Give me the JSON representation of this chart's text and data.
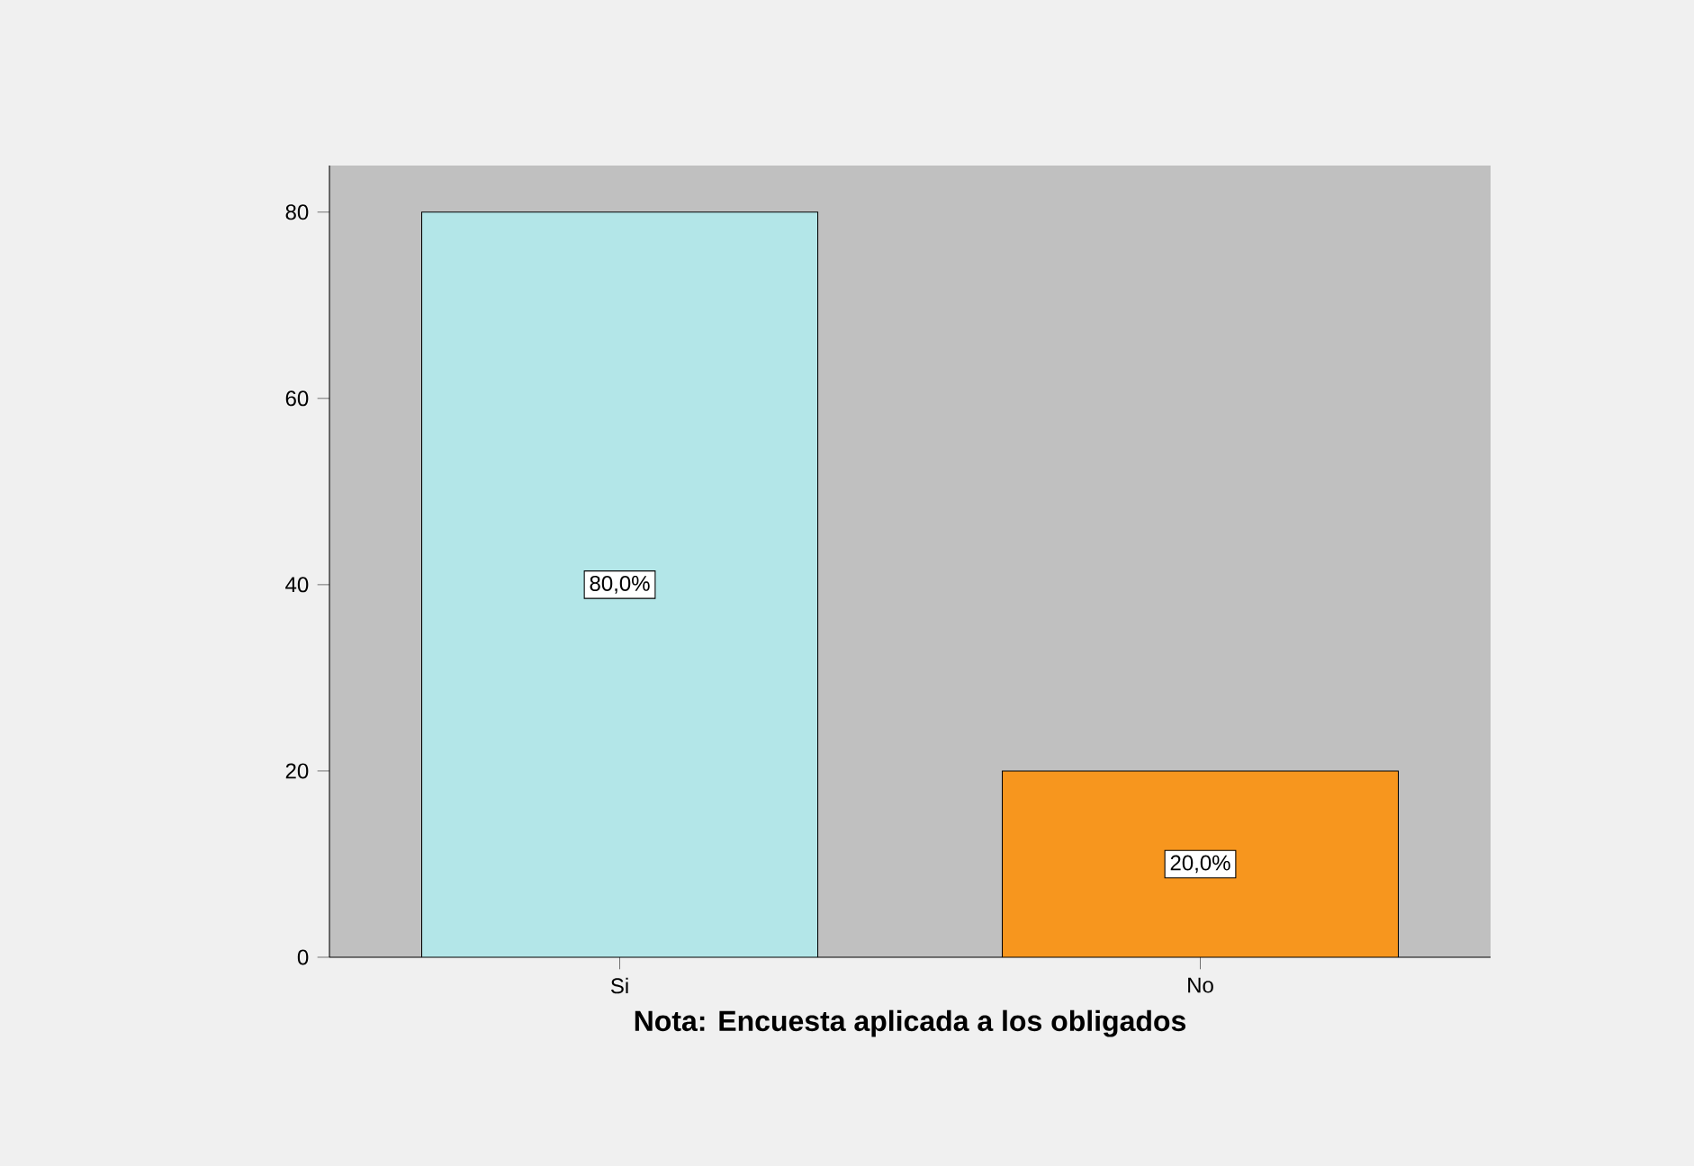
{
  "chart_data": {
    "type": "bar",
    "xlabel": "Nota: Encuesta aplicada a los obligados",
    "categories": [
      "Si",
      "No"
    ],
    "values": [
      80,
      20
    ],
    "colors": [
      "#b3e6e8",
      "#f7961e"
    ],
    "value_labels": [
      "80,0%",
      "20,0%"
    ],
    "ylim": [
      0,
      85
    ],
    "yticks": [
      0,
      20,
      40,
      60,
      80
    ],
    "grid": false
  }
}
